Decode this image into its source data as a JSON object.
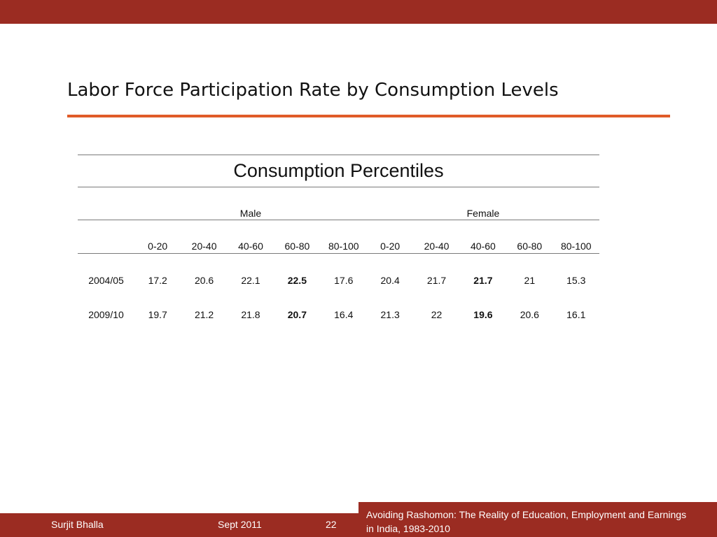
{
  "slide": {
    "title": "Labor Force Participation Rate by Consumption Levels"
  },
  "table": {
    "caption": "Consumption Percentiles",
    "groups": [
      "Male",
      "Female"
    ],
    "percentiles": [
      "0-20",
      "20-40",
      "40-60",
      "60-80",
      "80-100",
      "0-20",
      "20-40",
      "40-60",
      "60-80",
      "80-100"
    ],
    "rows": [
      {
        "year": "2004/05",
        "values": [
          "17.2",
          "20.6",
          "22.1",
          "22.5",
          "17.6",
          "20.4",
          "21.7",
          "21.7",
          "21",
          "15.3"
        ]
      },
      {
        "year": "2009/10",
        "values": [
          "19.7",
          "21.2",
          "21.8",
          "20.7",
          "16.4",
          "21.3",
          "22",
          "19.6",
          "20.6",
          "16.1"
        ]
      }
    ],
    "bold_column_indices": [
      3,
      7
    ]
  },
  "footer": {
    "author": "Surjit Bhalla",
    "date": "Sept 2011",
    "page": "22",
    "subtitle": "Avoiding Rashomon: The Reality of Education, Employment and Earnings in India, 1983-2010"
  },
  "colors": {
    "bar": "#9b2c22",
    "title_rule": "#e05b28"
  }
}
